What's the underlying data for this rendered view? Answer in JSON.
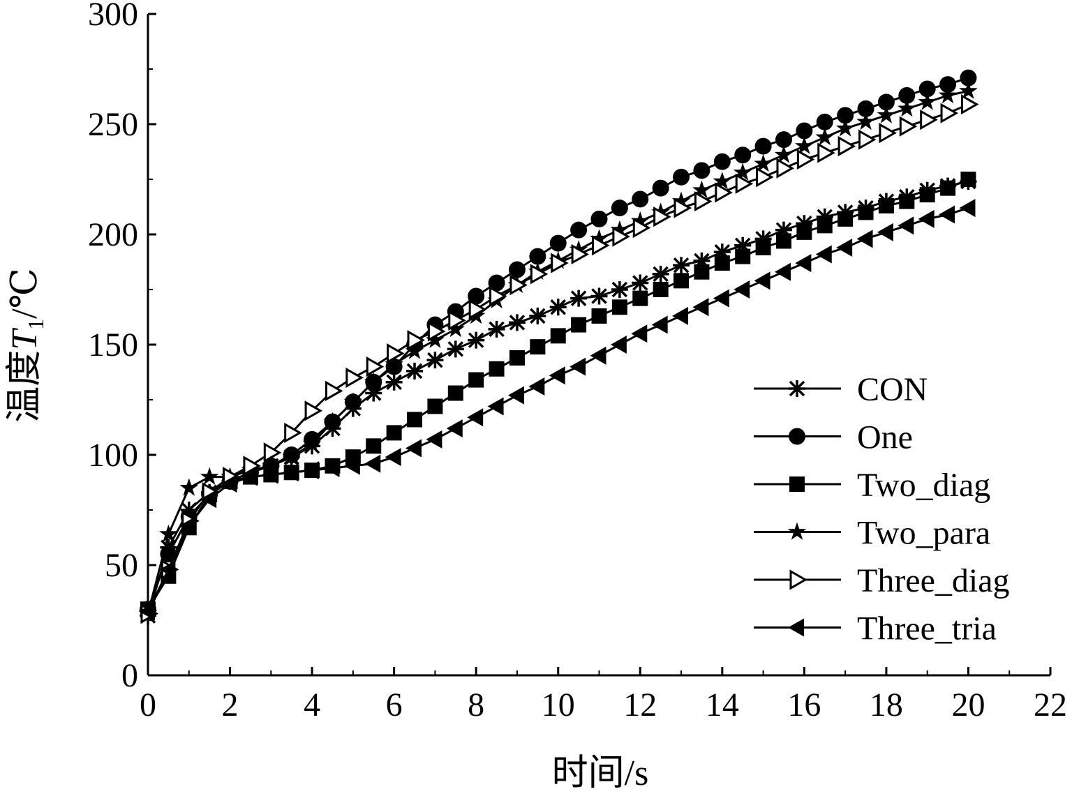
{
  "chart_data": {
    "type": "line",
    "title": "",
    "xlabel": "时间/s",
    "ylabel": {
      "prefix": "温度",
      "symbol": "T",
      "subscript": "1",
      "suffix": "/℃"
    },
    "xlim": [
      0,
      22
    ],
    "ylim": [
      0,
      300
    ],
    "xticks": [
      0,
      2,
      4,
      6,
      8,
      10,
      12,
      14,
      16,
      18,
      20,
      22
    ],
    "yticks": [
      0,
      50,
      100,
      150,
      200,
      250,
      300
    ],
    "grid": false,
    "legend_position": "bottom-right",
    "x": [
      0,
      0.5,
      1,
      1.5,
      2,
      2.5,
      3,
      3.5,
      4,
      4.5,
      5,
      5.5,
      6,
      6.5,
      7,
      7.5,
      8,
      8.5,
      9,
      9.5,
      10,
      10.5,
      11,
      11.5,
      12,
      12.5,
      13,
      13.5,
      14,
      14.5,
      15,
      15.5,
      16,
      16.5,
      17,
      17.5,
      18,
      18.5,
      19,
      19.5,
      20
    ],
    "series": [
      {
        "name": "CON",
        "marker": "asterisk",
        "values": [
          27,
          58,
          75,
          83,
          88,
          92,
          95,
          99,
          104,
          112,
          121,
          128,
          133,
          138,
          143,
          148,
          152,
          157,
          160,
          163,
          167,
          171,
          172,
          175,
          178,
          182,
          186,
          188,
          192,
          195,
          198,
          202,
          205,
          208,
          210,
          212,
          215,
          217,
          220,
          222,
          224
        ]
      },
      {
        "name": "One",
        "marker": "circle",
        "values": [
          30,
          55,
          72,
          82,
          88,
          92,
          95,
          100,
          107,
          115,
          124,
          133,
          140,
          150,
          159,
          165,
          172,
          178,
          184,
          190,
          196,
          202,
          207,
          212,
          216,
          221,
          226,
          229,
          233,
          236,
          240,
          243,
          247,
          251,
          254,
          257,
          260,
          263,
          266,
          268,
          271
        ]
      },
      {
        "name": "Two_diag",
        "marker": "square",
        "values": [
          30,
          45,
          67,
          82,
          88,
          90,
          91,
          92,
          93,
          95,
          99,
          104,
          110,
          116,
          122,
          128,
          134,
          139,
          144,
          149,
          154,
          159,
          163,
          167,
          171,
          175,
          179,
          183,
          187,
          190,
          194,
          197,
          201,
          204,
          207,
          210,
          213,
          215,
          218,
          221,
          225
        ]
      },
      {
        "name": "Two_para",
        "marker": "star",
        "values": [
          28,
          64,
          85,
          90,
          90,
          93,
          95,
          99,
          105,
          115,
          124,
          133,
          141,
          147,
          152,
          157,
          163,
          170,
          177,
          183,
          188,
          193,
          198,
          202,
          206,
          210,
          215,
          220,
          224,
          228,
          232,
          236,
          240,
          244,
          248,
          251,
          254,
          257,
          260,
          263,
          265
        ]
      },
      {
        "name": "Three_diag",
        "marker": "triangle-right",
        "values": [
          28,
          48,
          70,
          83,
          90,
          95,
          101,
          110,
          120,
          129,
          135,
          140,
          146,
          152,
          156,
          161,
          166,
          172,
          177,
          182,
          187,
          191,
          195,
          199,
          203,
          208,
          212,
          215,
          219,
          223,
          226,
          230,
          234,
          237,
          240,
          243,
          246,
          249,
          252,
          255,
          259
        ]
      },
      {
        "name": "Three_tria",
        "marker": "triangle-left",
        "values": [
          29,
          48,
          68,
          80,
          87,
          90,
          91,
          92,
          93,
          94,
          95,
          96,
          99,
          103,
          107,
          112,
          117,
          122,
          127,
          131,
          136,
          140,
          145,
          150,
          155,
          159,
          163,
          167,
          171,
          175,
          179,
          183,
          187,
          191,
          194,
          198,
          201,
          204,
          207,
          209,
          212
        ]
      }
    ]
  }
}
